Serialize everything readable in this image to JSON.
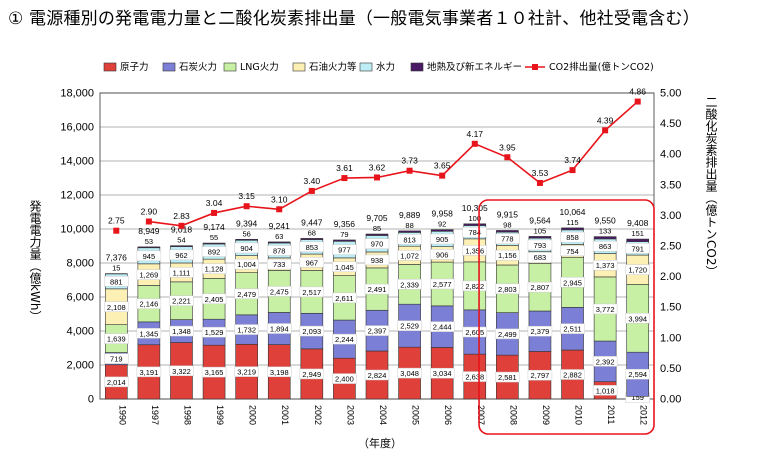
{
  "page_title": "① 電源種別の発電電力量と二酸化炭素排出量（一般電気事業者１０社計、他社受電含む）",
  "chart_data": {
    "type": "bar",
    "stacked": true,
    "title": "① 電源種別の発電電力量と二酸化炭素排出量（一般電気事業者１０社計、他社受電含む）",
    "xlabel": "（年度）",
    "ylabel": "発電電力量（億kWh）",
    "y2label": "二酸化炭素排出量（億トンCO2）",
    "ylim": [
      0,
      18000
    ],
    "y2lim": [
      0,
      5
    ],
    "yticks": [
      "0",
      "2,000",
      "4,000",
      "6,000",
      "8,000",
      "10,000",
      "12,000",
      "14,000",
      "16,000",
      "18,000"
    ],
    "y2ticks": [
      "0.00",
      "0.50",
      "1.00",
      "1.50",
      "2.00",
      "2.50",
      "3.00",
      "3.50",
      "4.00",
      "4.50",
      "5.00"
    ],
    "grid": true,
    "legend_position": "top",
    "categories": [
      "1990",
      "1997",
      "1998",
      "1999",
      "2000",
      "2001",
      "2002",
      "2003",
      "2004",
      "2005",
      "2006",
      "2007",
      "2008",
      "2009",
      "2010",
      "2011",
      "2012"
    ],
    "series": [
      {
        "name": "原子力",
        "color": "#e0403a",
        "values": [
          2014,
          3191,
          3322,
          3165,
          3219,
          3198,
          2949,
          2400,
          2824,
          3048,
          3034,
          2638,
          2581,
          2797,
          2882,
          1018,
          159
        ],
        "labels": [
          "2,014",
          "3,191",
          "3,322",
          "3,165",
          "3,219",
          "3,198",
          "2,949",
          "2,400",
          "2,824",
          "3,048",
          "3,034",
          "2,638",
          "2,581",
          "2,797",
          "2,882",
          "1,018",
          "159"
        ]
      },
      {
        "name": "石炭火力",
        "color": "#7b7fd6",
        "values": [
          719,
          1345,
          1348,
          1529,
          1732,
          1894,
          2093,
          2244,
          2397,
          2529,
          2444,
          2605,
          2499,
          2379,
          2511,
          2392,
          2594
        ],
        "labels": [
          "719",
          "1,345",
          "1,348",
          "1,529",
          "1,732",
          "1,894",
          "2,093",
          "2,244",
          "2,397",
          "2,529",
          "2,444",
          "2,605",
          "2,499",
          "2,379",
          "2,511",
          "2,392",
          "2,594"
        ]
      },
      {
        "name": "LNG火力",
        "color": "#c7f0a4",
        "values": [
          1639,
          2146,
          2221,
          2405,
          2479,
          2475,
          2517,
          2611,
          2491,
          2339,
          2577,
          2822,
          2803,
          2807,
          2945,
          3772,
          3994
        ],
        "labels": [
          "1,639",
          "2,146",
          "2,221",
          "2,405",
          "2,479",
          "2,475",
          "2,517",
          "2,611",
          "2,491",
          "2,339",
          "2,577",
          "2,822",
          "2,803",
          "2,807",
          "2,945",
          "3,772",
          "3,994"
        ]
      },
      {
        "name": "石油火力等",
        "color": "#fdf0b4",
        "values": [
          2108,
          1269,
          1111,
          1128,
          1004,
          733,
          967,
          1045,
          938,
          1072,
          906,
          1356,
          1156,
          683,
          754,
          1373,
          1720
        ],
        "labels": [
          "2,108",
          "1,269",
          "1,111",
          "1,128",
          "1,004",
          "733",
          "967",
          "1,045",
          "938",
          "1,072",
          "906",
          "1,356",
          "1,156",
          "683",
          "754",
          "1,373",
          "1,720"
        ]
      },
      {
        "name": "水力",
        "color": "#bdeef6",
        "values": [
          881,
          945,
          962,
          892,
          904,
          878,
          853,
          977,
          970,
          813,
          905,
          784,
          778,
          793,
          858,
          863,
          791
        ],
        "labels": [
          "881",
          "945",
          "962",
          "892",
          "904",
          "878",
          "853",
          "977",
          "970",
          "813",
          "905",
          "784",
          "778",
          "793",
          "858",
          "863",
          "791"
        ]
      },
      {
        "name": "地熱及び新エネルギー",
        "color": "#4a1a66",
        "values": [
          15,
          53,
          54,
          55,
          56,
          63,
          68,
          79,
          85,
          88,
          92,
          100,
          98,
          105,
          115,
          133,
          151
        ],
        "labels": [
          "15",
          "53",
          "54",
          "55",
          "56",
          "63",
          "68",
          "79",
          "85",
          "88",
          "92",
          "100",
          "98",
          "105",
          "115",
          "133",
          "151"
        ]
      }
    ],
    "totals": [
      "7,376",
      "8,949",
      "9,018",
      "9,174",
      "9,394",
      "9,241",
      "9,447",
      "9,356",
      "9,705",
      "9,889",
      "9,958",
      "10,305",
      "9,915",
      "9,564",
      "10,064",
      "9,550",
      "9,408"
    ],
    "line_series": {
      "name": "CO2排出量（億トンCO2）",
      "color": "#e8141b",
      "axis": "right",
      "values": [
        2.75,
        2.9,
        2.83,
        3.04,
        3.15,
        3.1,
        3.4,
        3.61,
        3.62,
        3.73,
        3.65,
        4.17,
        3.95,
        3.53,
        3.74,
        4.39,
        4.86
      ],
      "labels": [
        "2.75",
        "2.90",
        "2.83",
        "3.04",
        "3.15",
        "3.10",
        "3.40",
        "3.61",
        "3.62",
        "3.73",
        "3.65",
        "4.17",
        "3.95",
        "3.53",
        "3.74",
        "4.39",
        "4.86"
      ],
      "connected_from": "1997"
    },
    "highlight_box": {
      "from": "2008",
      "to": "2012",
      "color": "#e8141b"
    }
  }
}
